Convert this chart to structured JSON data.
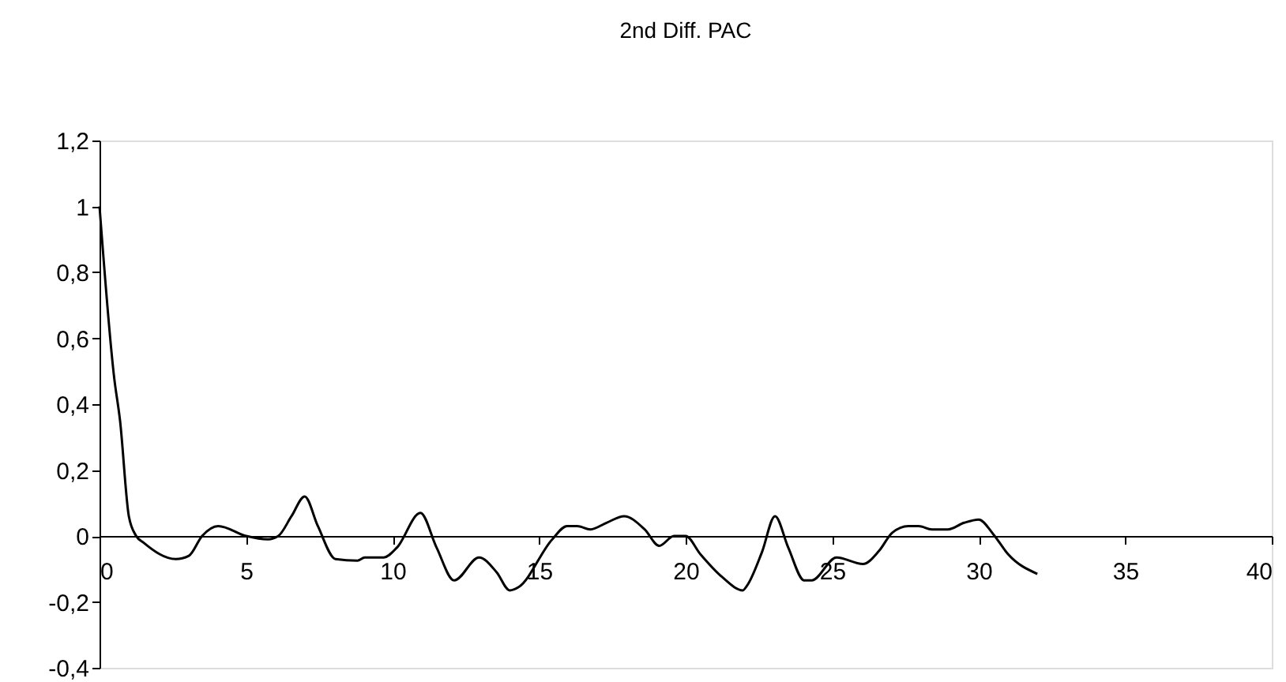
{
  "chart_data": {
    "type": "line",
    "title": "2nd Diff.  PAC",
    "x": [
      0,
      0.5,
      0.7,
      1,
      1.25,
      1.5,
      2.6,
      3.05,
      3.5,
      4.05,
      5,
      5.75,
      6.1,
      6.55,
      7,
      7.45,
      8.05,
      8.8,
      9.05,
      9.7,
      10.15,
      10.95,
      11.5,
      12.1,
      12.95,
      13.55,
      14,
      14.3,
      15.45,
      15.95,
      16.3,
      16.75,
      17.3,
      17.9,
      18.6,
      19.1,
      19.6,
      20,
      20.5,
      21.25,
      21.95,
      22.1,
      22.6,
      23.05,
      23.5,
      24.05,
      24.3,
      25.15,
      26.05,
      26.6,
      27.05,
      27.6,
      27.95,
      28.4,
      28.95,
      29.5,
      30,
      30.5,
      31,
      32
    ],
    "series": [
      {
        "color": "#000000",
        "values": [
          1.0,
          0.48,
          0.35,
          0.06,
          0.0,
          -0.02,
          -0.07,
          -0.06,
          0.0,
          0.03,
          0.0,
          -0.01,
          0.0,
          0.06,
          0.12,
          0.03,
          -0.07,
          -0.075,
          -0.065,
          -0.065,
          -0.035,
          0.07,
          -0.035,
          -0.135,
          -0.065,
          -0.11,
          -0.165,
          -0.155,
          -0.01,
          0.03,
          0.03,
          0.02,
          0.04,
          0.06,
          0.02,
          -0.03,
          0.0,
          0.0,
          -0.055,
          -0.125,
          -0.165,
          -0.15,
          -0.05,
          0.06,
          -0.035,
          -0.135,
          -0.135,
          -0.065,
          -0.085,
          -0.045,
          0.01,
          0.03,
          0.03,
          0.02,
          0.02,
          0.04,
          0.05,
          0.005,
          -0.055,
          -0.115
        ]
      }
    ],
    "xlim": [
      0,
      40
    ],
    "xticks": [
      0,
      5,
      10,
      15,
      20,
      25,
      30,
      35,
      40
    ],
    "ylim": [
      -0.4,
      1.2
    ],
    "yticks": [
      {
        "value": -0.4,
        "label": "-0,4"
      },
      {
        "value": -0.2,
        "label": "-0,2"
      },
      0,
      {
        "value": 0.2,
        "label": "0,2"
      },
      {
        "value": 0.4,
        "label": "0,4"
      },
      {
        "value": 0.6,
        "label": "0,6"
      },
      {
        "value": 0.8,
        "label": "0,8"
      },
      1,
      {
        "value": 1.2,
        "label": "1,2"
      }
    ],
    "grid": false,
    "marker": "none",
    "line_style": "solid"
  }
}
